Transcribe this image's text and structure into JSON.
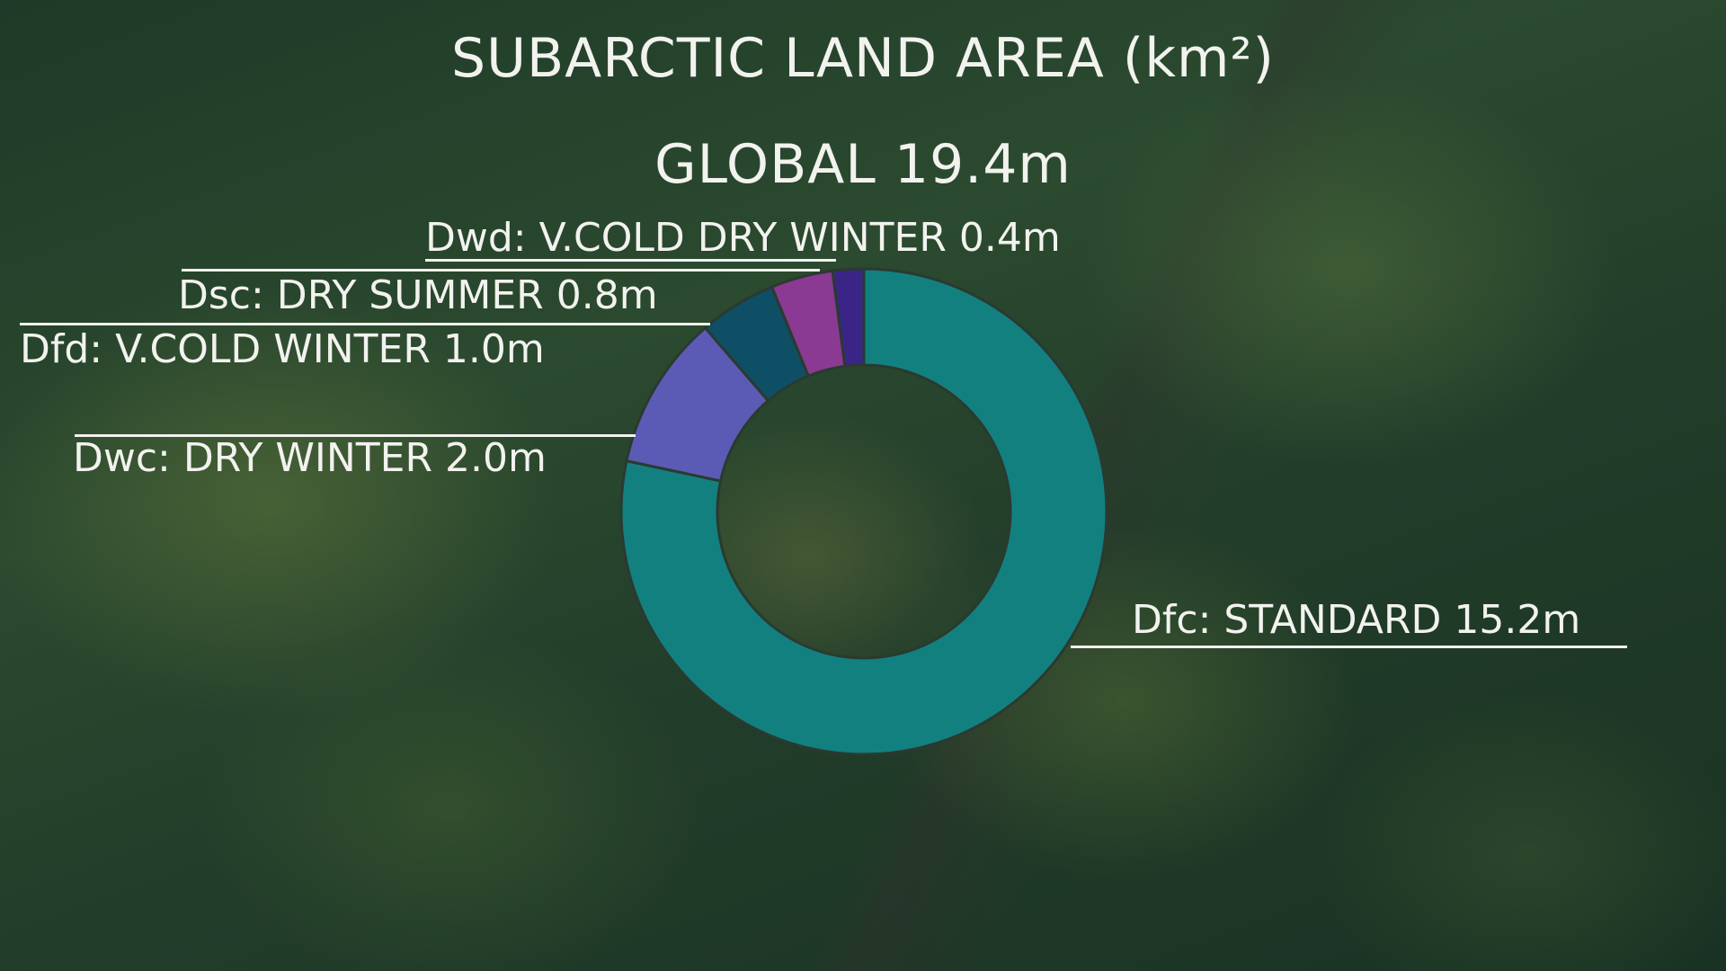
{
  "chart_data": {
    "type": "pie",
    "donut": true,
    "title": "SUBARCTIC LAND AREA (km²)",
    "subtitle": "GLOBAL 19.4m",
    "categories": [
      "Dfc: STANDARD",
      "Dwc: DRY WINTER",
      "Dfd: V.COLD WINTER",
      "Dsc: DRY SUMMER",
      "Dwd: V.COLD DRY WINTER"
    ],
    "values": [
      15.2,
      2.0,
      1.0,
      0.8,
      0.4
    ],
    "unit": "m",
    "labels": [
      "Dfc: STANDARD 15.2m",
      "Dwc: DRY WINTER 2.0m",
      "Dfd: V.COLD WINTER 1.0m",
      "Dsc: DRY SUMMER 0.8m",
      "Dwd: V.COLD DRY WINTER 0.4m"
    ],
    "colors": [
      "#138080",
      "#5b5bb5",
      "#0f4f66",
      "#8a3a93",
      "#3a2587"
    ],
    "legend": "none"
  }
}
